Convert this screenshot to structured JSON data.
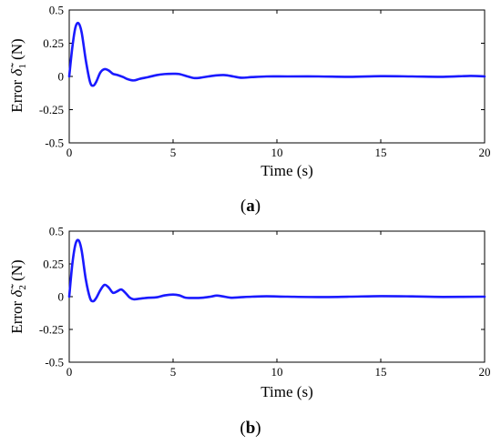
{
  "chart_data": [
    {
      "type": "line",
      "panel_label": "a",
      "xlabel": "Time (s)",
      "ylabel": "Error δ̃₁ (N)",
      "ylabel_prefix": "Error ",
      "ylabel_symbol": "δ̃",
      "ylabel_subscript": "1",
      "ylabel_unit": " (N)",
      "xlim": [
        0,
        20
      ],
      "ylim": [
        -0.5,
        0.5
      ],
      "xticks": [
        0,
        5,
        10,
        15,
        20
      ],
      "yticks": [
        -0.5,
        -0.25,
        0,
        0.25,
        0.5
      ],
      "xtick_labels": [
        "0",
        "5",
        "10",
        "15",
        "20"
      ],
      "ytick_labels": [
        "-0.5",
        "-0.25",
        "0",
        "0.25",
        "0.5"
      ],
      "grid": false,
      "series": [
        {
          "color": "#1a1aff",
          "x": [
            0,
            0.15,
            0.3,
            0.45,
            0.6,
            0.8,
            1.0,
            1.15,
            1.3,
            1.5,
            1.7,
            1.9,
            2.1,
            2.3,
            2.6,
            2.8,
            3.1,
            3.4,
            3.8,
            4.2,
            4.6,
            5.0,
            5.3,
            5.7,
            6.0,
            6.3,
            6.7,
            7.1,
            7.5,
            7.9,
            8.3,
            8.8,
            9.5,
            10.5,
            12.0,
            13.5,
            15.0,
            16.5,
            18.0,
            19.3,
            20.0
          ],
          "y": [
            0,
            0.22,
            0.37,
            0.4,
            0.33,
            0.12,
            -0.04,
            -0.07,
            -0.04,
            0.03,
            0.055,
            0.045,
            0.02,
            0.012,
            -0.005,
            -0.02,
            -0.03,
            -0.018,
            -0.005,
            0.01,
            0.018,
            0.02,
            0.018,
            0.0,
            -0.012,
            -0.01,
            0.0,
            0.008,
            0.01,
            0.0,
            -0.01,
            -0.005,
            0.0,
            0.0,
            0.0,
            -0.003,
            0.002,
            0.0,
            -0.003,
            0.004,
            0.0
          ]
        }
      ]
    },
    {
      "type": "line",
      "panel_label": "b",
      "xlabel": "Time (s)",
      "ylabel": "Error δ̃₂ (N)",
      "ylabel_prefix": "Error ",
      "ylabel_symbol": "δ̃",
      "ylabel_subscript": "2",
      "ylabel_unit": " (N)",
      "xlim": [
        0,
        20
      ],
      "ylim": [
        -0.5,
        0.5
      ],
      "xticks": [
        0,
        5,
        10,
        15,
        20
      ],
      "yticks": [
        -0.5,
        -0.25,
        0,
        0.25,
        0.5
      ],
      "xtick_labels": [
        "0",
        "5",
        "10",
        "15",
        "20"
      ],
      "ytick_labels": [
        "-0.5",
        "-0.25",
        "0",
        "0.25",
        "0.5"
      ],
      "grid": false,
      "series": [
        {
          "color": "#1a1aff",
          "x": [
            0,
            0.15,
            0.3,
            0.45,
            0.6,
            0.8,
            1.0,
            1.15,
            1.3,
            1.5,
            1.7,
            1.9,
            2.1,
            2.3,
            2.5,
            2.7,
            2.9,
            3.1,
            3.4,
            3.8,
            4.2,
            4.6,
            5.0,
            5.3,
            5.6,
            6.0,
            6.4,
            6.8,
            7.1,
            7.4,
            7.8,
            8.2,
            8.8,
            9.5,
            10.5,
            12.0,
            13.5,
            15.0,
            16.5,
            18.0,
            20.0
          ],
          "y": [
            0,
            0.25,
            0.4,
            0.43,
            0.35,
            0.13,
            -0.01,
            -0.035,
            -0.01,
            0.05,
            0.09,
            0.07,
            0.03,
            0.04,
            0.055,
            0.03,
            -0.005,
            -0.02,
            -0.015,
            -0.008,
            -0.005,
            0.01,
            0.016,
            0.01,
            -0.008,
            -0.01,
            -0.008,
            0.0,
            0.008,
            0.002,
            -0.008,
            -0.005,
            0.0,
            0.003,
            0.0,
            -0.003,
            0.0,
            0.004,
            0.002,
            -0.002,
            0.0
          ]
        }
      ]
    }
  ]
}
